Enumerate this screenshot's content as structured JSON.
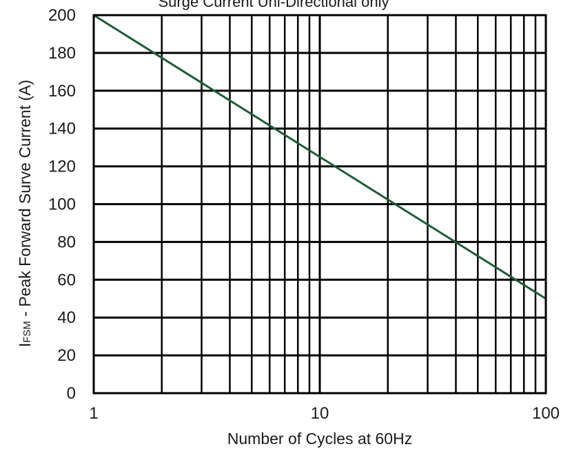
{
  "chart_data": {
    "type": "line",
    "title": "Surge Current Uni-Directional only",
    "xlabel": "Number of Cycles at 60Hz",
    "ylabel_main": "I",
    "ylabel_sub": "FSM",
    "ylabel_rest": " - Peak Forward Surve Current (A)",
    "x_scale": "log",
    "xlim": [
      1,
      100
    ],
    "ylim": [
      0,
      200
    ],
    "x_ticks": [
      1,
      10,
      100
    ],
    "x_tick_labels": [
      "1",
      "10",
      "100"
    ],
    "y_ticks": [
      0,
      20,
      40,
      60,
      80,
      100,
      120,
      140,
      160,
      180,
      200
    ],
    "y_tick_labels": [
      "0",
      "20",
      "40",
      "60",
      "80",
      "100",
      "120",
      "140",
      "160",
      "180",
      "200"
    ],
    "grid": true,
    "line_color": "#1f5a35",
    "series": [
      {
        "x": [
          1,
          10,
          100
        ],
        "y": [
          200,
          125,
          50
        ]
      }
    ]
  }
}
